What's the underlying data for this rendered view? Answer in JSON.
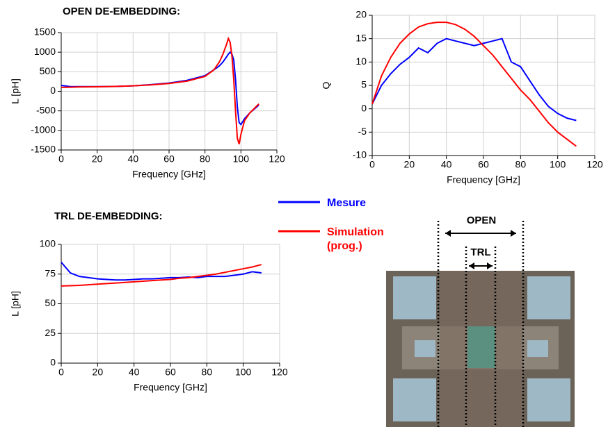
{
  "headings": [
    "OPEN DE-EMBEDDING:",
    "TRL DE-EMBEDDING:"
  ],
  "photo": {
    "labels": [
      "OPEN",
      "TRL"
    ]
  },
  "chart_data": [
    {
      "type": "line",
      "y_label": "L [pH]",
      "x_label": "Frequency [GHz]",
      "xlim": [
        0,
        120
      ],
      "xticks": [
        0,
        20,
        40,
        60,
        80,
        100,
        120
      ],
      "ylim": [
        -1500,
        1500
      ],
      "yticks": [
        -1500,
        -1000,
        -500,
        0,
        500,
        1000,
        1500
      ],
      "grid": true,
      "x": [
        0,
        5,
        10,
        20,
        30,
        40,
        50,
        60,
        70,
        80,
        85,
        88,
        90,
        92,
        93,
        94,
        95,
        96,
        97,
        98,
        99,
        100,
        102,
        105,
        110
      ],
      "series": [
        {
          "name": "Mesure",
          "color": "#0000ff",
          "values": [
            150,
            120,
            120,
            120,
            125,
            140,
            170,
            210,
            280,
            400,
            550,
            650,
            750,
            880,
            950,
            1000,
            950,
            800,
            300,
            -400,
            -800,
            -850,
            -700,
            -550,
            -350
          ]
        },
        {
          "name": "Simulation (prog.)",
          "color": "#ff0000",
          "values": [
            100,
            105,
            110,
            115,
            125,
            140,
            165,
            200,
            260,
            380,
            550,
            750,
            950,
            1200,
            1350,
            1250,
            900,
            300,
            -500,
            -1200,
            -1350,
            -1100,
            -750,
            -550,
            -320
          ]
        }
      ]
    },
    {
      "type": "line",
      "y_label": "Q",
      "x_label": "Frequency [GHz]",
      "xlim": [
        0,
        120
      ],
      "xticks": [
        0,
        20,
        40,
        60,
        80,
        100,
        120
      ],
      "ylim": [
        -10,
        20
      ],
      "yticks": [
        -10,
        -5,
        0,
        5,
        10,
        15,
        20
      ],
      "grid": true,
      "x": [
        0,
        5,
        10,
        15,
        20,
        25,
        30,
        35,
        40,
        45,
        50,
        55,
        60,
        65,
        70,
        75,
        80,
        85,
        90,
        95,
        100,
        105,
        110
      ],
      "series": [
        {
          "color": "#0000ff",
          "values": [
            1,
            5,
            7.5,
            9.5,
            11,
            13,
            12,
            14,
            15,
            14.5,
            14,
            13.5,
            14,
            14.5,
            15,
            10,
            9,
            6,
            3,
            0.5,
            -1,
            -2,
            -2.5
          ]
        },
        {
          "color": "#ff0000",
          "values": [
            1,
            7,
            11,
            14,
            16,
            17.5,
            18.2,
            18.5,
            18.5,
            18,
            17,
            15.5,
            13.5,
            11.5,
            9,
            6.5,
            4,
            2,
            -0.5,
            -3,
            -5,
            -6.5,
            -8
          ]
        }
      ]
    },
    {
      "type": "line",
      "y_label": "L [pH]",
      "x_label": "Frequency [GHz]",
      "xlim": [
        0,
        120
      ],
      "xticks": [
        0,
        20,
        40,
        60,
        80,
        100,
        120
      ],
      "ylim": [
        0,
        100
      ],
      "yticks": [
        0,
        25,
        50,
        75,
        100
      ],
      "grid": true,
      "x": [
        0,
        5,
        10,
        15,
        20,
        25,
        30,
        35,
        40,
        45,
        50,
        55,
        60,
        65,
        70,
        75,
        80,
        85,
        90,
        95,
        100,
        105,
        110
      ],
      "series": [
        {
          "color": "#0000ff",
          "values": [
            85,
            76,
            73,
            72,
            71,
            70.5,
            70,
            70,
            70.5,
            71,
            71,
            71.5,
            72,
            72,
            72.5,
            72,
            73,
            73,
            73,
            74,
            75,
            77,
            76
          ]
        },
        {
          "color": "#ff0000",
          "values": [
            65,
            65.2,
            65.5,
            66,
            66.5,
            67,
            67.5,
            68,
            68.5,
            69,
            69.5,
            70,
            70.5,
            71.5,
            72,
            73,
            74,
            75,
            76.5,
            78,
            79.5,
            81,
            83
          ]
        }
      ]
    }
  ]
}
